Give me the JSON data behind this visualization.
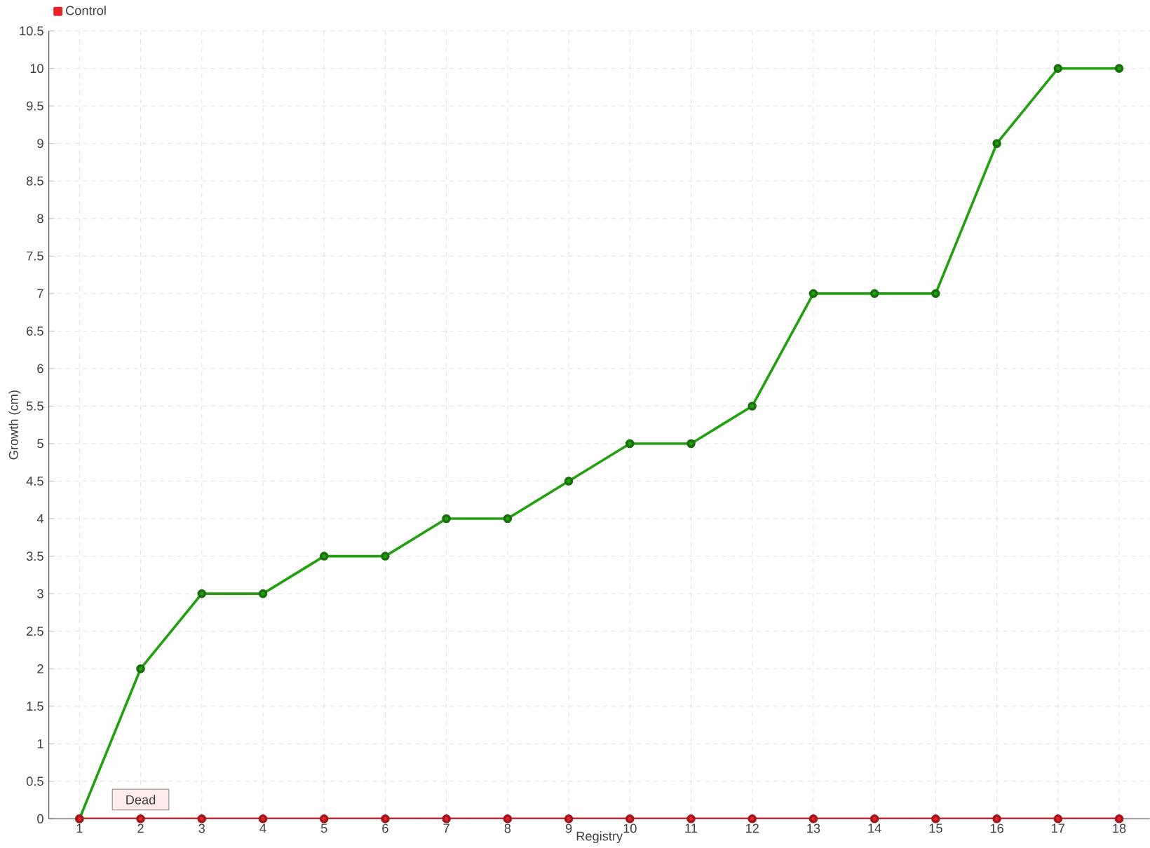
{
  "chart_data": {
    "type": "line",
    "xlabel": "Registry",
    "ylabel": "Growth (cm)",
    "categories": [
      "1",
      "2",
      "3",
      "4",
      "5",
      "6",
      "7",
      "8",
      "9",
      "10",
      "11",
      "12",
      "13",
      "14",
      "15",
      "16",
      "17",
      "18"
    ],
    "series": [
      {
        "color": "#22a010",
        "values": [
          0,
          2,
          3,
          3,
          3.5,
          3.5,
          4,
          4,
          4.5,
          5,
          5,
          5.5,
          7,
          7,
          7,
          9,
          10,
          10
        ]
      },
      {
        "name": "Control",
        "color": "#e8202a",
        "values": [
          0,
          0,
          0,
          0,
          0,
          0,
          0,
          0,
          0,
          0,
          0,
          0,
          0,
          0,
          0,
          0,
          0,
          0
        ]
      }
    ],
    "ylim": [
      0,
      10.5
    ],
    "yticks": [
      0,
      0.5,
      1,
      1.5,
      2,
      2.5,
      3,
      3.5,
      4,
      4.5,
      5,
      5.5,
      6,
      6.5,
      7,
      7.5,
      8,
      8.5,
      9,
      9.5,
      10,
      10.5
    ],
    "grid": true,
    "legend": "top left",
    "marker": "circle",
    "line_style": "solid",
    "annotations": [
      {
        "text": "Dead",
        "x": "2",
        "y": 0
      }
    ]
  }
}
